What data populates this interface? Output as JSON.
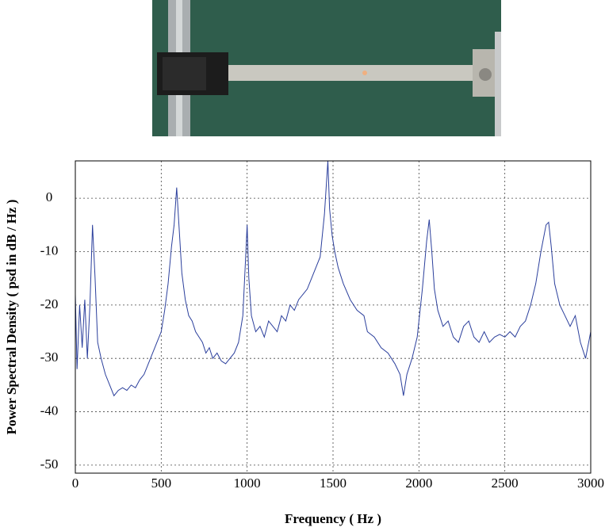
{
  "chart_data": {
    "type": "line",
    "x_label": "Frequency ( Hz )",
    "y_label": "Power Spectral Density ( psd in dB / Hz )",
    "x": [
      0,
      10,
      25,
      40,
      55,
      70,
      85,
      100,
      115,
      130,
      150,
      175,
      200,
      225,
      250,
      275,
      300,
      325,
      350,
      375,
      400,
      425,
      450,
      475,
      500,
      520,
      540,
      560,
      575,
      590,
      605,
      620,
      640,
      660,
      680,
      700,
      720,
      740,
      760,
      780,
      800,
      825,
      850,
      875,
      900,
      925,
      950,
      975,
      990,
      1000,
      1010,
      1025,
      1050,
      1075,
      1100,
      1125,
      1150,
      1175,
      1200,
      1225,
      1250,
      1275,
      1300,
      1325,
      1350,
      1375,
      1400,
      1425,
      1450,
      1470,
      1480,
      1495,
      1510,
      1530,
      1560,
      1600,
      1640,
      1680,
      1700,
      1740,
      1780,
      1820,
      1860,
      1890,
      1910,
      1930,
      1960,
      1990,
      2020,
      2045,
      2060,
      2075,
      2090,
      2110,
      2140,
      2170,
      2200,
      2230,
      2260,
      2290,
      2320,
      2350,
      2380,
      2410,
      2440,
      2470,
      2500,
      2530,
      2560,
      2590,
      2620,
      2650,
      2680,
      2710,
      2740,
      2755,
      2770,
      2790,
      2820,
      2850,
      2880,
      2910,
      2940,
      2970,
      3000
    ],
    "series": [
      {
        "color": "#2b3f9c",
        "values": [
          -18,
          -32,
          -20,
          -28,
          -19,
          -30,
          -20,
          -5,
          -15,
          -27,
          -30,
          -33,
          -35,
          -37,
          -36,
          -35.5,
          -36,
          -35,
          -35.5,
          -34,
          -33,
          -31,
          -29,
          -27,
          -25,
          -21,
          -16,
          -9,
          -5,
          2,
          -6,
          -14,
          -19,
          -22,
          -23,
          -25,
          -26,
          -27,
          -29,
          -28,
          -30,
          -29,
          -30.5,
          -31,
          -30,
          -29,
          -27,
          -22,
          -12,
          -5,
          -15,
          -22,
          -25,
          -24,
          -26,
          -23,
          -24,
          -25,
          -22,
          -23,
          -20,
          -21,
          -19,
          -18,
          -17,
          -15,
          -13,
          -11,
          -3,
          7,
          -2,
          -7,
          -10,
          -13,
          -16,
          -19,
          -21,
          -22,
          -25,
          -26,
          -28,
          -29,
          -31,
          -33,
          -37,
          -33,
          -30,
          -26,
          -17,
          -8,
          -4,
          -10,
          -17,
          -21,
          -24,
          -23,
          -26,
          -27,
          -24,
          -23,
          -26,
          -27,
          -25,
          -27,
          -26,
          -25.5,
          -26,
          -25,
          -26,
          -24,
          -23,
          -20,
          -16,
          -10,
          -5,
          -4.5,
          -9,
          -16,
          -20,
          -22,
          -24,
          -22,
          -27,
          -30,
          -25
        ]
      }
    ],
    "xlim": [
      0,
      3000
    ],
    "ylim": [
      -51.5,
      7
    ],
    "xticks": [
      0,
      500,
      1000,
      1500,
      2000,
      2500,
      3000
    ],
    "yticks": [
      0,
      -10,
      -20,
      -30,
      -40,
      -50
    ],
    "grid": true
  }
}
